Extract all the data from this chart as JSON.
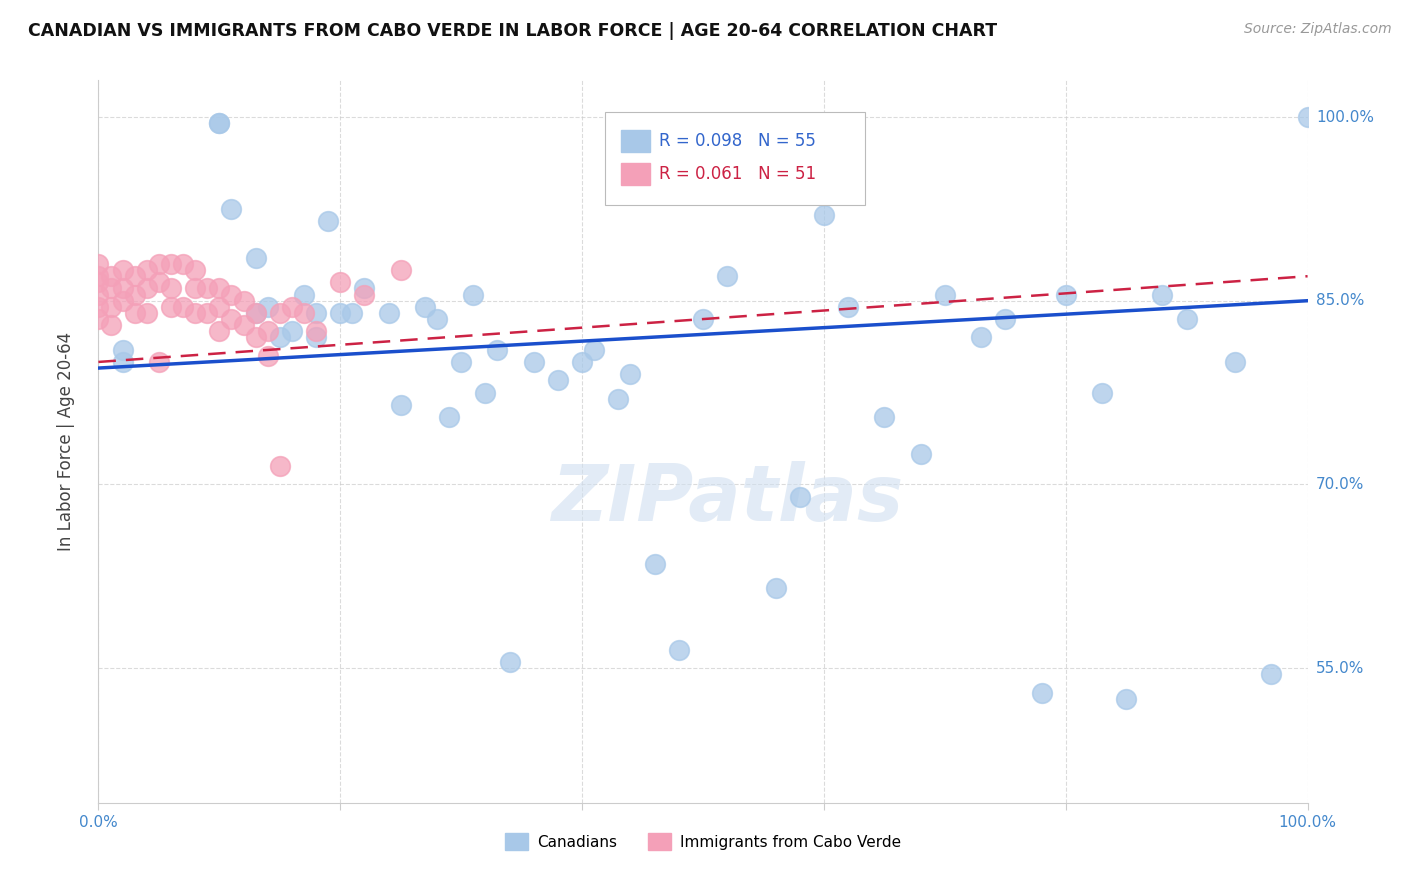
{
  "title": "CANADIAN VS IMMIGRANTS FROM CABO VERDE IN LABOR FORCE | AGE 20-64 CORRELATION CHART",
  "source": "Source: ZipAtlas.com",
  "ylabel": "In Labor Force | Age 20-64",
  "R_canadian": 0.098,
  "N_canadian": 55,
  "R_caboverde": 0.061,
  "N_caboverde": 51,
  "canadian_color": "#a8c8e8",
  "caboverde_color": "#f4a0b8",
  "line_canadian_color": "#1a4fcc",
  "line_caboverde_color": "#cc2244",
  "watermark": "ZIPatlas",
  "xlim": [
    0.0,
    1.0
  ],
  "ylim": [
    0.44,
    1.03
  ],
  "yticks": [
    0.55,
    0.7,
    0.85,
    1.0
  ],
  "ytick_labels": [
    "55.0%",
    "70.0%",
    "85.0%",
    "100.0%"
  ],
  "xtick_labels": [
    "0.0%",
    "",
    "",
    "",
    "",
    "100.0%"
  ],
  "canadian_x": [
    0.02,
    0.02,
    0.1,
    0.1,
    0.11,
    0.13,
    0.13,
    0.14,
    0.15,
    0.16,
    0.17,
    0.18,
    0.18,
    0.19,
    0.2,
    0.21,
    0.22,
    0.24,
    0.25,
    0.27,
    0.28,
    0.29,
    0.3,
    0.31,
    0.32,
    0.33,
    0.34,
    0.36,
    0.38,
    0.4,
    0.41,
    0.43,
    0.44,
    0.46,
    0.48,
    0.5,
    0.52,
    0.56,
    0.58,
    0.6,
    0.62,
    0.65,
    0.68,
    0.7,
    0.73,
    0.75,
    0.78,
    0.8,
    0.83,
    0.85,
    0.88,
    0.9,
    0.94,
    0.97,
    1.0
  ],
  "canadian_y": [
    0.81,
    0.8,
    0.995,
    0.995,
    0.925,
    0.885,
    0.84,
    0.845,
    0.82,
    0.825,
    0.855,
    0.84,
    0.82,
    0.915,
    0.84,
    0.84,
    0.86,
    0.84,
    0.765,
    0.845,
    0.835,
    0.755,
    0.8,
    0.855,
    0.775,
    0.81,
    0.555,
    0.8,
    0.785,
    0.8,
    0.81,
    0.77,
    0.79,
    0.635,
    0.565,
    0.835,
    0.87,
    0.615,
    0.69,
    0.92,
    0.845,
    0.755,
    0.725,
    0.855,
    0.82,
    0.835,
    0.53,
    0.855,
    0.775,
    0.525,
    0.855,
    0.835,
    0.8,
    0.545,
    1.0
  ],
  "caboverde_x": [
    0.0,
    0.0,
    0.0,
    0.0,
    0.0,
    0.0,
    0.01,
    0.01,
    0.01,
    0.01,
    0.02,
    0.02,
    0.02,
    0.03,
    0.03,
    0.03,
    0.04,
    0.04,
    0.04,
    0.05,
    0.05,
    0.05,
    0.06,
    0.06,
    0.06,
    0.07,
    0.07,
    0.08,
    0.08,
    0.08,
    0.09,
    0.09,
    0.1,
    0.1,
    0.1,
    0.11,
    0.11,
    0.12,
    0.12,
    0.13,
    0.13,
    0.14,
    0.14,
    0.15,
    0.15,
    0.16,
    0.17,
    0.18,
    0.2,
    0.22,
    0.25
  ],
  "caboverde_y": [
    0.88,
    0.87,
    0.865,
    0.855,
    0.845,
    0.835,
    0.87,
    0.86,
    0.845,
    0.83,
    0.875,
    0.86,
    0.85,
    0.87,
    0.855,
    0.84,
    0.875,
    0.86,
    0.84,
    0.88,
    0.865,
    0.8,
    0.88,
    0.86,
    0.845,
    0.88,
    0.845,
    0.875,
    0.86,
    0.84,
    0.86,
    0.84,
    0.86,
    0.845,
    0.825,
    0.855,
    0.835,
    0.85,
    0.83,
    0.84,
    0.82,
    0.805,
    0.825,
    0.84,
    0.715,
    0.845,
    0.84,
    0.825,
    0.865,
    0.855,
    0.875
  ]
}
